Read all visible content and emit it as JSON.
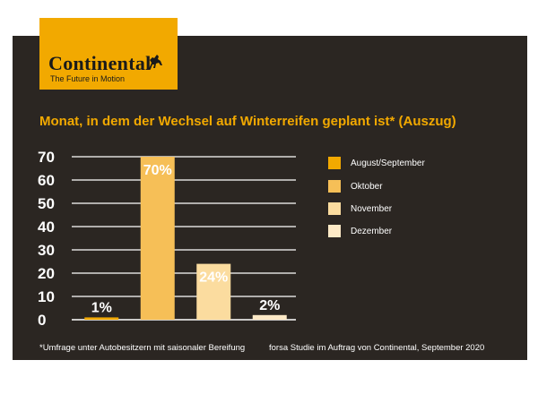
{
  "logo": {
    "wordmark": "Continental",
    "tagline": "The Future in Motion",
    "icon": "horse-icon",
    "color": "#f2a900"
  },
  "colors": {
    "background": "#2b2622",
    "accent": "#f2a900",
    "text": "#ffffff"
  },
  "chart_data": {
    "type": "bar",
    "title": "Monat, in dem der Wechsel auf Winterreifen geplant ist* (Auszug)",
    "categories": [
      "August/September",
      "Oktober",
      "November",
      "Dezember"
    ],
    "values": [
      1,
      70,
      24,
      2
    ],
    "data_labels": [
      "1%",
      "70%",
      "24%",
      "2%"
    ],
    "colors": [
      "#f2a900",
      "#f6bf57",
      "#fbdc9f",
      "#fde9c6"
    ],
    "ylim": [
      0,
      70
    ],
    "yticks": [
      0,
      10,
      20,
      30,
      40,
      50,
      60,
      70
    ],
    "grid": true,
    "legend": "right",
    "xlabel": "",
    "ylabel": ""
  },
  "footnote": "*Umfrage unter Autobesitzern mit saisonaler Bereifung",
  "source": "forsa Studie im Auftrag von Continental, September 2020"
}
